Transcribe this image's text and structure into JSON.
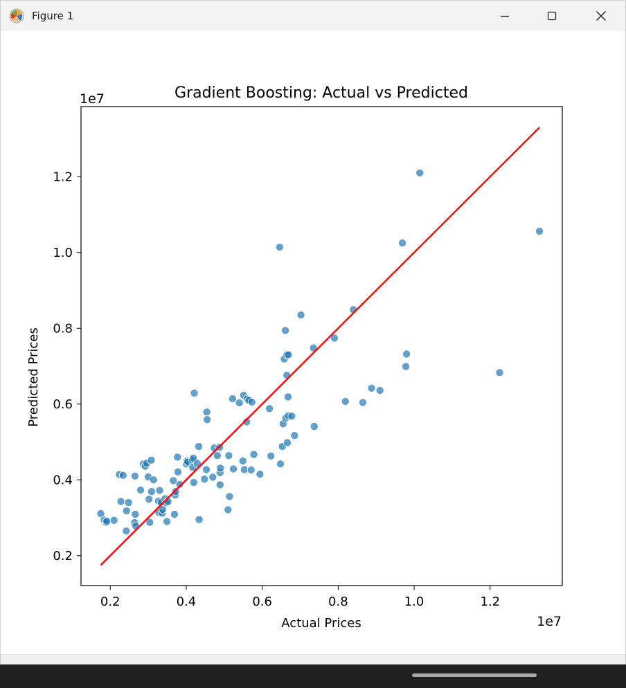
{
  "window": {
    "title": "Figure 1",
    "icon": "matplotlib-logo-icon",
    "controls": [
      "minimize-icon",
      "maximize-icon",
      "close-icon"
    ]
  },
  "chart_data": {
    "type": "scatter",
    "title": "Gradient Boosting: Actual vs Predicted",
    "xlabel": "Actual Prices",
    "ylabel": "Predicted Prices",
    "x_offset_label": "1e7",
    "y_offset_label": "1e7",
    "xlim": [
      1230000,
      13900000
    ],
    "ylim": [
      1210000,
      13850000
    ],
    "xticks": [
      2000000,
      4000000,
      6000000,
      8000000,
      10000000,
      12000000
    ],
    "xtick_labels": [
      "0.2",
      "0.4",
      "0.6",
      "0.8",
      "1.0",
      "1.2"
    ],
    "yticks": [
      2000000,
      4000000,
      6000000,
      8000000,
      10000000,
      12000000
    ],
    "ytick_labels": [
      "0.2",
      "0.4",
      "0.6",
      "0.8",
      "1.0",
      "1.2"
    ],
    "grid": false,
    "legend": "none",
    "point_color": "#1f77b4",
    "line_color": "#ff0000",
    "reference_line": {
      "x": [
        1750000,
        13300000
      ],
      "y": [
        1750000,
        13300000
      ]
    },
    "points": [
      [
        1750000,
        3110000
      ],
      [
        1840000,
        2940000
      ],
      [
        1890000,
        2880000
      ],
      [
        1910000,
        2910000
      ],
      [
        2100000,
        2930000
      ],
      [
        2240000,
        4140000
      ],
      [
        2280000,
        3430000
      ],
      [
        2340000,
        4120000
      ],
      [
        2420000,
        2650000
      ],
      [
        2430000,
        3180000
      ],
      [
        2480000,
        3400000
      ],
      [
        2640000,
        2870000
      ],
      [
        2650000,
        4100000
      ],
      [
        2660000,
        3090000
      ],
      [
        2670000,
        2780000
      ],
      [
        2800000,
        3730000
      ],
      [
        2870000,
        4420000
      ],
      [
        2920000,
        4360000
      ],
      [
        2960000,
        4440000
      ],
      [
        3000000,
        4080000
      ],
      [
        3020000,
        3490000
      ],
      [
        3040000,
        2880000
      ],
      [
        3080000,
        4520000
      ],
      [
        3090000,
        3690000
      ],
      [
        3140000,
        4000000
      ],
      [
        3270000,
        3440000
      ],
      [
        3280000,
        3140000
      ],
      [
        3300000,
        3720000
      ],
      [
        3340000,
        3400000
      ],
      [
        3370000,
        3120000
      ],
      [
        3380000,
        3220000
      ],
      [
        3440000,
        3500000
      ],
      [
        3480000,
        3400000
      ],
      [
        3490000,
        2900000
      ],
      [
        3520000,
        3430000
      ],
      [
        3660000,
        3980000
      ],
      [
        3690000,
        3090000
      ],
      [
        3710000,
        3600000
      ],
      [
        3720000,
        3690000
      ],
      [
        3770000,
        4600000
      ],
      [
        3780000,
        4210000
      ],
      [
        3830000,
        3880000
      ],
      [
        4000000,
        4420000
      ],
      [
        4020000,
        4500000
      ],
      [
        4040000,
        4470000
      ],
      [
        4160000,
        4520000
      ],
      [
        4170000,
        4330000
      ],
      [
        4190000,
        4570000
      ],
      [
        4200000,
        3930000
      ],
      [
        4210000,
        6290000
      ],
      [
        4290000,
        4430000
      ],
      [
        4330000,
        4880000
      ],
      [
        4340000,
        2950000
      ],
      [
        4480000,
        4020000
      ],
      [
        4530000,
        4270000
      ],
      [
        4540000,
        5790000
      ],
      [
        4550000,
        5590000
      ],
      [
        4700000,
        4070000
      ],
      [
        4740000,
        4840000
      ],
      [
        4820000,
        4640000
      ],
      [
        4880000,
        4860000
      ],
      [
        4890000,
        3870000
      ],
      [
        4890000,
        4190000
      ],
      [
        4900000,
        4310000
      ],
      [
        5100000,
        3210000
      ],
      [
        5120000,
        4640000
      ],
      [
        5140000,
        3560000
      ],
      [
        5220000,
        6140000
      ],
      [
        5240000,
        4290000
      ],
      [
        5400000,
        6030000
      ],
      [
        5490000,
        4500000
      ],
      [
        5510000,
        6230000
      ],
      [
        5530000,
        4270000
      ],
      [
        5590000,
        5530000
      ],
      [
        5600000,
        6130000
      ],
      [
        5650000,
        6100000
      ],
      [
        5710000,
        4260000
      ],
      [
        5730000,
        6050000
      ],
      [
        5780000,
        4670000
      ],
      [
        5940000,
        4150000
      ],
      [
        6190000,
        5880000
      ],
      [
        6230000,
        4630000
      ],
      [
        6460000,
        10140000
      ],
      [
        6480000,
        4420000
      ],
      [
        6530000,
        4880000
      ],
      [
        6550000,
        5480000
      ],
      [
        6580000,
        7190000
      ],
      [
        6610000,
        7940000
      ],
      [
        6620000,
        5630000
      ],
      [
        6650000,
        6760000
      ],
      [
        6650000,
        7300000
      ],
      [
        6660000,
        4980000
      ],
      [
        6680000,
        6190000
      ],
      [
        6690000,
        5690000
      ],
      [
        6690000,
        7300000
      ],
      [
        6780000,
        5680000
      ],
      [
        6850000,
        5170000
      ],
      [
        7020000,
        8350000
      ],
      [
        7350000,
        7480000
      ],
      [
        7370000,
        5410000
      ],
      [
        7900000,
        7740000
      ],
      [
        8190000,
        6070000
      ],
      [
        8400000,
        8490000
      ],
      [
        8650000,
        6040000
      ],
      [
        8880000,
        6420000
      ],
      [
        9100000,
        6360000
      ],
      [
        9690000,
        10250000
      ],
      [
        9780000,
        6990000
      ],
      [
        9800000,
        7320000
      ],
      [
        10150000,
        12100000
      ],
      [
        12250000,
        6830000
      ],
      [
        13300000,
        10560000
      ]
    ]
  }
}
